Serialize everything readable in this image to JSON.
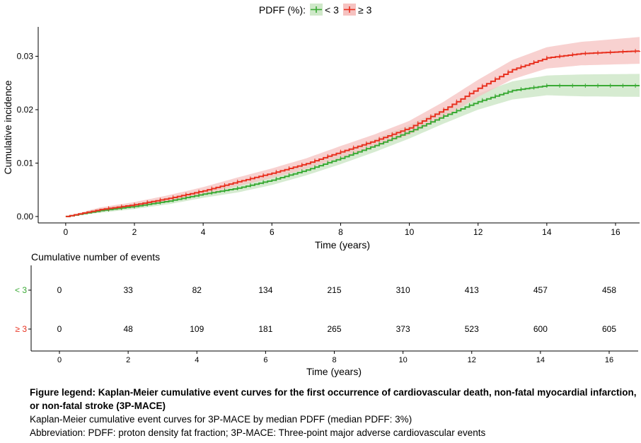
{
  "legend": {
    "title": "PDFF (%):",
    "items": [
      {
        "label": "< 3",
        "color": "#3aaa35",
        "fill": "#cfe8c9"
      },
      {
        "label": "≥ 3",
        "color": "#e8301f",
        "fill": "#f6c2c0"
      }
    ]
  },
  "chart_data": {
    "type": "line",
    "ylabel": "Cumulative incidence",
    "xlabel": "Time (years)",
    "xlim": [
      -0.8,
      16.7
    ],
    "ylim": [
      -0.0012,
      0.0355
    ],
    "x_ticks": [
      0,
      2,
      4,
      6,
      8,
      10,
      12,
      14,
      16
    ],
    "y_ticks": [
      0.0,
      0.01,
      0.02,
      0.03
    ],
    "y_tick_labels": [
      "0.00",
      "0.01",
      "0.02",
      "0.03"
    ],
    "grid": false,
    "legend_position": "top",
    "series": [
      {
        "name": "< 3",
        "color": "#3aaa35",
        "points": [
          [
            0,
            0
          ],
          [
            1,
            0.0011
          ],
          [
            2,
            0.0019
          ],
          [
            3,
            0.0029
          ],
          [
            4,
            0.0042
          ],
          [
            5,
            0.0053
          ],
          [
            6,
            0.0068
          ],
          [
            7,
            0.0087
          ],
          [
            8,
            0.0109
          ],
          [
            9,
            0.0133
          ],
          [
            10,
            0.0159
          ],
          [
            11,
            0.0188
          ],
          [
            12,
            0.0215
          ],
          [
            13,
            0.0236
          ],
          [
            14,
            0.0245
          ],
          [
            15,
            0.0245
          ],
          [
            16.7,
            0.0245
          ]
        ],
        "ci_lower": [
          0,
          0.0007,
          0.0014,
          0.0023,
          0.0035,
          0.0045,
          0.0059,
          0.0077,
          0.0098,
          0.0121,
          0.0146,
          0.0174,
          0.02,
          0.0219,
          0.0227,
          0.0225,
          0.0224
        ],
        "ci_upper": [
          0,
          0.0015,
          0.0024,
          0.0035,
          0.0049,
          0.0061,
          0.0077,
          0.0097,
          0.012,
          0.0145,
          0.0172,
          0.0202,
          0.023,
          0.0253,
          0.0264,
          0.0266,
          0.0267
        ]
      },
      {
        "name": "≥ 3",
        "color": "#e8301f",
        "points": [
          [
            0,
            0
          ],
          [
            1,
            0.0013
          ],
          [
            2,
            0.0022
          ],
          [
            3,
            0.0034
          ],
          [
            4,
            0.0048
          ],
          [
            5,
            0.0065
          ],
          [
            6,
            0.0081
          ],
          [
            7,
            0.0099
          ],
          [
            8,
            0.0121
          ],
          [
            9,
            0.0142
          ],
          [
            10,
            0.0166
          ],
          [
            11,
            0.02
          ],
          [
            12,
            0.024
          ],
          [
            13,
            0.0275
          ],
          [
            14,
            0.0297
          ],
          [
            15,
            0.0305
          ],
          [
            16.7,
            0.031
          ]
        ],
        "ci_lower": [
          0,
          0.0009,
          0.0017,
          0.0028,
          0.0041,
          0.0057,
          0.0072,
          0.0089,
          0.011,
          0.013,
          0.0153,
          0.0185,
          0.0224,
          0.0257,
          0.0277,
          0.0283,
          0.0286
        ],
        "ci_upper": [
          0,
          0.0017,
          0.0027,
          0.004,
          0.0055,
          0.0073,
          0.009,
          0.0109,
          0.0132,
          0.0154,
          0.0179,
          0.0215,
          0.0256,
          0.0293,
          0.0317,
          0.0327,
          0.0336
        ]
      }
    ]
  },
  "risk_table": {
    "title": "Cumulative number of events",
    "xlabel": "Time (years)",
    "times": [
      0,
      2,
      4,
      6,
      8,
      10,
      12,
      14,
      16
    ],
    "rows": [
      {
        "label": "< 3",
        "color": "#3aaa35",
        "values": [
          0,
          33,
          82,
          134,
          215,
          310,
          413,
          457,
          458
        ]
      },
      {
        "label": "≥ 3",
        "color": "#e8301f",
        "values": [
          0,
          48,
          109,
          181,
          265,
          373,
          523,
          600,
          605
        ]
      }
    ]
  },
  "caption": {
    "bold_text": "Figure legend: Kaplan-Meier cumulative event curves for the first occurrence of cardiovascular death, non-fatal myocardial infarction, or non-fatal stroke (3P-MACE)",
    "line2": "Kaplan-Meier cumulative event curves for 3P-MACE by median PDFF (median PDFF: 3%)",
    "line3": "Abbreviation: PDFF: proton density fat fraction; 3P-MACE: Three-point major adverse cardiovascular events"
  }
}
